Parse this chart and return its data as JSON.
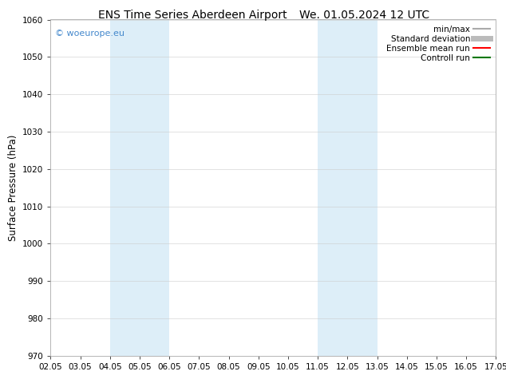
{
  "title_left": "ENS Time Series Aberdeen Airport",
  "title_right": "We. 01.05.2024 12 UTC",
  "ylabel": "Surface Pressure (hPa)",
  "ylim": [
    970,
    1060
  ],
  "yticks": [
    970,
    980,
    990,
    1000,
    1010,
    1020,
    1030,
    1040,
    1050,
    1060
  ],
  "xlim": [
    0,
    15
  ],
  "xtick_positions": [
    0,
    1,
    2,
    3,
    4,
    5,
    6,
    7,
    8,
    9,
    10,
    11,
    12,
    13,
    14,
    15
  ],
  "xtick_labels": [
    "02.05",
    "03.05",
    "04.05",
    "05.05",
    "06.05",
    "07.05",
    "08.05",
    "09.05",
    "10.05",
    "11.05",
    "12.05",
    "13.05",
    "14.05",
    "15.05",
    "16.05",
    "17.05"
  ],
  "shaded_bands": [
    {
      "xmin": 2.0,
      "xmax": 4.0
    },
    {
      "xmin": 9.0,
      "xmax": 11.0
    }
  ],
  "band_color": "#ddeef8",
  "watermark": "© woeurope.eu",
  "watermark_color": "#4488cc",
  "legend_items": [
    {
      "label": "min/max",
      "color": "#aaaaaa",
      "lw": 1.5
    },
    {
      "label": "Standard deviation",
      "color": "#bbbbbb",
      "lw": 5
    },
    {
      "label": "Ensemble mean run",
      "color": "#ff0000",
      "lw": 1.5
    },
    {
      "label": "Controll run",
      "color": "#007700",
      "lw": 1.5
    }
  ],
  "background_color": "#ffffff",
  "grid_color": "#cccccc",
  "title_fontsize": 10,
  "tick_fontsize": 7.5,
  "ylabel_fontsize": 8.5,
  "legend_fontsize": 7.5,
  "watermark_fontsize": 8
}
